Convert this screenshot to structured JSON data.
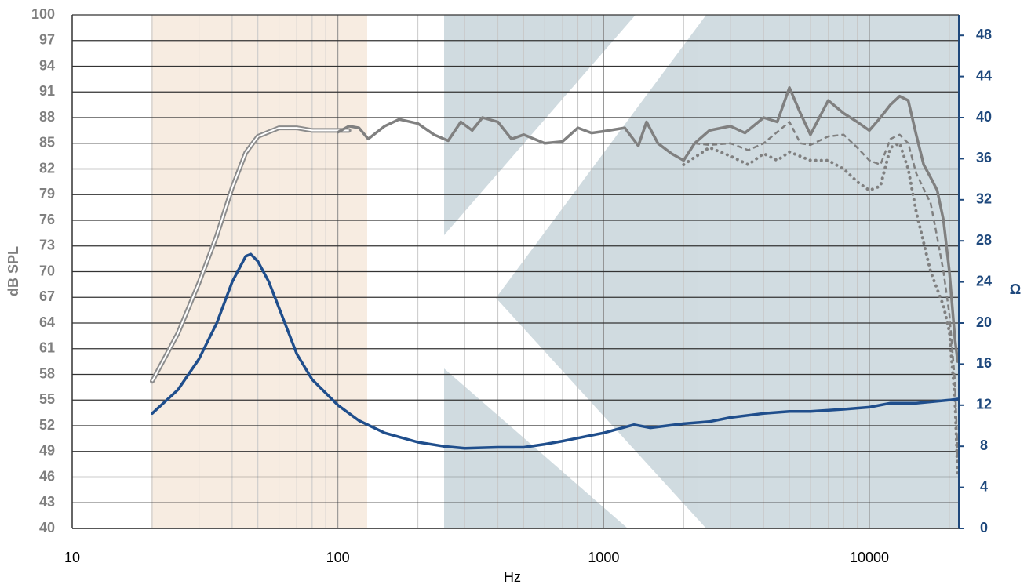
{
  "chart_data": {
    "type": "line",
    "log_x": true,
    "grid": true,
    "xlabel": "Hz",
    "ylabel": "dB SPL",
    "y2label": "Ω",
    "xlim": [
      10,
      21700
    ],
    "xticks": [
      10,
      100,
      1000,
      10000
    ],
    "xminorticks": [
      20,
      30,
      40,
      50,
      60,
      70,
      80,
      90,
      200,
      300,
      400,
      500,
      600,
      700,
      800,
      900,
      2000,
      3000,
      4000,
      5000,
      6000,
      7000,
      8000,
      9000,
      20000
    ],
    "ylim": [
      40,
      100
    ],
    "yticks": [
      40,
      43,
      46,
      49,
      52,
      55,
      58,
      61,
      64,
      67,
      70,
      73,
      76,
      79,
      82,
      85,
      88,
      91,
      94,
      97,
      100
    ],
    "y2lim": [
      0,
      50
    ],
    "y2ticks": [
      0,
      4,
      8,
      12,
      16,
      20,
      24,
      28,
      32,
      36,
      40,
      44,
      48
    ],
    "series": [
      {
        "color": "#8c8c8c",
        "style": "double",
        "x": [
          20,
          25,
          30,
          35,
          40,
          45,
          50,
          60,
          70,
          80,
          110
        ],
        "values": [
          57.2,
          62.8,
          68.7,
          74.2,
          79.8,
          83.9,
          85.8,
          86.8,
          86.8,
          86.5,
          86.5
        ]
      },
      {
        "color": "#808080",
        "style": "solid",
        "x": [
          100,
          110,
          120,
          130,
          150,
          170,
          200,
          230,
          260,
          290,
          320,
          350,
          400,
          450,
          500,
          600,
          700,
          800,
          900,
          1000,
          1200,
          1350,
          1450,
          1600,
          1800,
          2000,
          2200,
          2500,
          3000,
          3400,
          4000,
          4500,
          5000,
          5500,
          6000,
          7000,
          8000,
          9000,
          10000,
          11000,
          12000,
          13000,
          14000,
          15000,
          16000,
          17000,
          18000,
          19000,
          20000,
          21000,
          21500
        ],
        "values": [
          86.3,
          87,
          86.8,
          85.5,
          87,
          87.8,
          87.3,
          86,
          85.3,
          87.5,
          86.5,
          88,
          87.5,
          85.5,
          86,
          85,
          85.2,
          86.8,
          86.2,
          86.4,
          86.8,
          84.7,
          87.5,
          85,
          83.8,
          83,
          85,
          86.5,
          87,
          86.2,
          88,
          87.5,
          91.5,
          88.5,
          86,
          90,
          88.5,
          87.5,
          86.5,
          88,
          89.5,
          90.5,
          90,
          86,
          82.5,
          81,
          79.5,
          76,
          70,
          62,
          59.5
        ]
      },
      {
        "color": "#808080",
        "style": "dashed",
        "x": [
          2200,
          2500,
          3000,
          3500,
          4000,
          5000,
          5500,
          6000,
          7000,
          8000,
          9000,
          10000,
          11000,
          12000,
          13000,
          14000,
          15000,
          17000,
          18000,
          19000,
          20000,
          21000,
          21500
        ],
        "values": [
          85,
          84.8,
          85,
          84.2,
          85,
          87.5,
          85,
          84.8,
          85.8,
          86,
          84.5,
          83,
          82.5,
          85.5,
          86,
          85,
          81.5,
          78,
          74,
          70,
          65,
          57,
          48
        ]
      },
      {
        "color": "#808080",
        "style": "dotted",
        "x": [
          2000,
          2500,
          3000,
          3500,
          4000,
          4500,
          5000,
          6000,
          7000,
          8000,
          9000,
          10000,
          11000,
          12000,
          13000,
          14000,
          15000,
          17000,
          19000,
          20000,
          21000,
          21500
        ],
        "values": [
          82.5,
          84.5,
          83.5,
          82.5,
          83.8,
          83,
          84,
          83,
          83,
          82,
          80.5,
          79.5,
          80,
          84.5,
          85,
          82,
          77,
          70,
          66,
          63,
          55,
          46
        ]
      },
      {
        "color": "#1f4e8c",
        "style": "solid",
        "axis": "y2",
        "x": [
          20,
          25,
          30,
          35,
          40,
          45,
          47,
          50,
          55,
          60,
          70,
          80,
          100,
          120,
          150,
          200,
          250,
          300,
          400,
          500,
          600,
          700,
          800,
          1000,
          1300,
          1500,
          2000,
          2500,
          3000,
          4000,
          5000,
          6000,
          8000,
          10000,
          12000,
          15000,
          20000,
          21600
        ],
        "values": [
          11.2,
          13.5,
          16.5,
          20,
          24,
          26.5,
          26.7,
          26,
          24,
          21.5,
          17,
          14.5,
          12,
          10.5,
          9.3,
          8.4,
          8,
          7.8,
          7.9,
          7.9,
          8.2,
          8.5,
          8.8,
          9.3,
          10.1,
          9.8,
          10.2,
          10.4,
          10.8,
          11.2,
          11.4,
          11.4,
          11.6,
          11.8,
          12.2,
          12.2,
          12.5,
          12.6
        ]
      }
    ]
  }
}
